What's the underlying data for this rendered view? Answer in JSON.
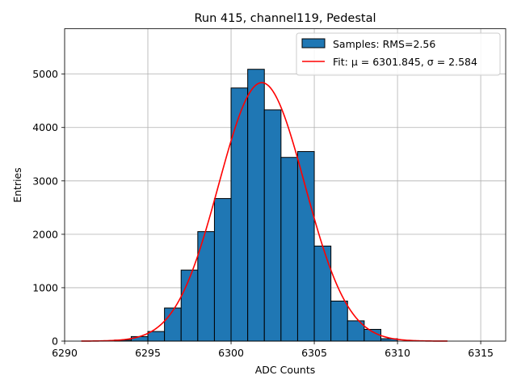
{
  "chart_data": {
    "type": "bar",
    "title": "Run 415, channel119, Pedestal",
    "xlabel": "ADC Counts",
    "ylabel": "Entries",
    "xlim": [
      6290,
      6316.5
    ],
    "ylim": [
      0,
      5850
    ],
    "xticks": [
      6290,
      6295,
      6300,
      6305,
      6310,
      6315
    ],
    "yticks": [
      0,
      1000,
      2000,
      3000,
      4000,
      5000
    ],
    "grid": true,
    "legend_position": "top-right",
    "series": [
      {
        "name": "Samples: RMS=2.56",
        "kind": "histogram",
        "color": "#1f77b4",
        "edgecolor": "#000000",
        "bins": [
          {
            "x0": 6293,
            "x1": 6294,
            "value": 20
          },
          {
            "x0": 6294,
            "x1": 6295,
            "value": 85
          },
          {
            "x0": 6295,
            "x1": 6296,
            "value": 180
          },
          {
            "x0": 6296,
            "x1": 6297,
            "value": 620
          },
          {
            "x0": 6297,
            "x1": 6298,
            "value": 1330
          },
          {
            "x0": 6298,
            "x1": 6299,
            "value": 2050
          },
          {
            "x0": 6299,
            "x1": 6300,
            "value": 2670
          },
          {
            "x0": 6300,
            "x1": 6301,
            "value": 4740
          },
          {
            "x0": 6301,
            "x1": 6302,
            "value": 5090
          },
          {
            "x0": 6302,
            "x1": 6303,
            "value": 4330
          },
          {
            "x0": 6303,
            "x1": 6304,
            "value": 3440
          },
          {
            "x0": 6304,
            "x1": 6305,
            "value": 3550
          },
          {
            "x0": 6305,
            "x1": 6306,
            "value": 1780
          },
          {
            "x0": 6306,
            "x1": 6307,
            "value": 750
          },
          {
            "x0": 6307,
            "x1": 6308,
            "value": 380
          },
          {
            "x0": 6308,
            "x1": 6309,
            "value": 220
          },
          {
            "x0": 6309,
            "x1": 6310,
            "value": 45
          }
        ]
      },
      {
        "name": "Fit: μ = 6301.845, σ = 2.584",
        "kind": "gaussian-fit",
        "color": "#ff0000",
        "mu": 6301.845,
        "sigma": 2.584,
        "amplitude": 4840,
        "x_range": [
          6291,
          6313
        ]
      }
    ]
  }
}
